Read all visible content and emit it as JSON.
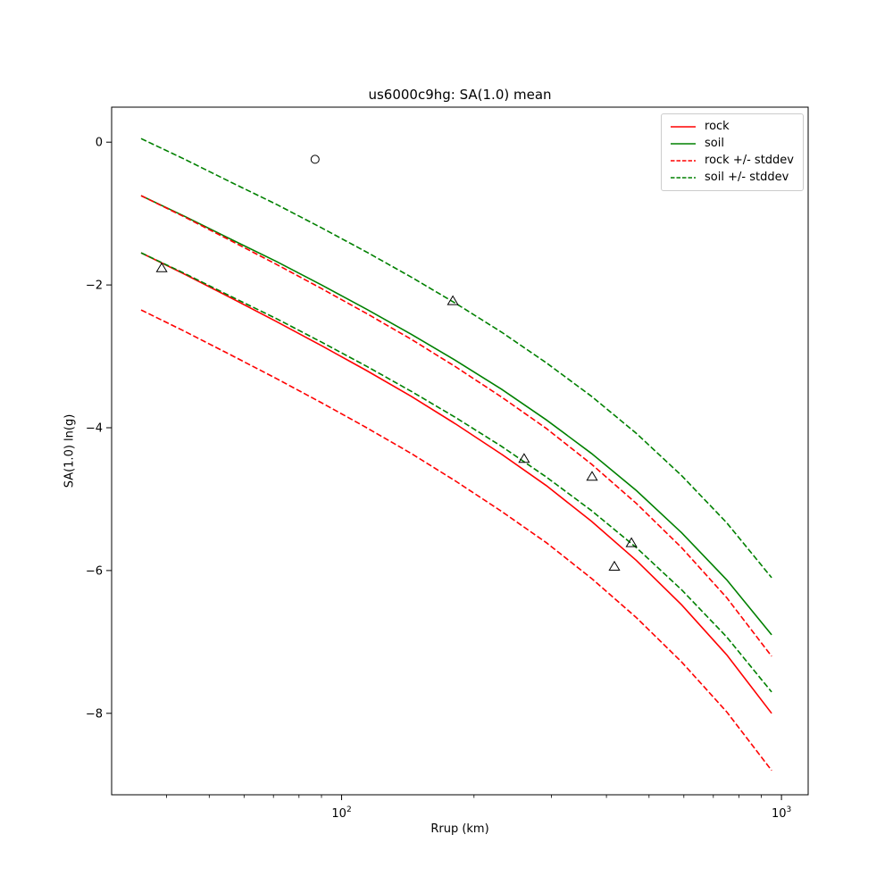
{
  "chart_data": {
    "type": "line",
    "title": "us6000c9hg: SA(1.0) mean",
    "xlabel": "Rrup (km)",
    "ylabel": "SA(1.0) ln(g)",
    "x_scale": "log",
    "y_scale": "linear",
    "xlim": [
      30,
      1150
    ],
    "ylim": [
      -9.14,
      0.49
    ],
    "grid": false,
    "legend_position": "upper right",
    "colors": {
      "rock": "#ff0000",
      "soil": "#008000",
      "markers": "#000000",
      "frame": "#000000"
    },
    "x_major_ticks": [
      {
        "value": 100,
        "base": "10",
        "exponent": "2"
      },
      {
        "value": 1000,
        "base": "10",
        "exponent": "3"
      }
    ],
    "y_ticks": [
      {
        "value": 0,
        "label": "0"
      },
      {
        "value": -2,
        "label": "−2"
      },
      {
        "value": -4,
        "label": "−4"
      },
      {
        "value": -6,
        "label": "−6"
      },
      {
        "value": -8,
        "label": "−8"
      }
    ],
    "x": [
      35,
      44,
      56,
      71,
      90,
      114,
      144,
      182,
      231,
      292,
      370,
      468,
      593,
      751,
      950
    ],
    "series": [
      {
        "name": "rock",
        "color": "#ff0000",
        "linestyle": "solid",
        "values": [
          -1.55,
          -1.85,
          -2.18,
          -2.51,
          -2.85,
          -3.2,
          -3.56,
          -3.95,
          -4.37,
          -4.81,
          -5.31,
          -5.86,
          -6.48,
          -7.18,
          -8.0
        ]
      },
      {
        "name": "soil",
        "color": "#008000",
        "linestyle": "solid",
        "values": [
          -0.75,
          -1.04,
          -1.36,
          -1.67,
          -2.0,
          -2.34,
          -2.69,
          -3.06,
          -3.46,
          -3.89,
          -4.36,
          -4.88,
          -5.47,
          -6.13,
          -6.9
        ]
      },
      {
        "name": "rock +/- stddev",
        "color": "#ff0000",
        "linestyle": "dashed",
        "upper": [
          -0.75,
          -1.05,
          -1.38,
          -1.71,
          -2.05,
          -2.4,
          -2.76,
          -3.15,
          -3.57,
          -4.01,
          -4.51,
          -5.06,
          -5.68,
          -6.38,
          -7.2
        ],
        "lower": [
          -2.35,
          -2.65,
          -2.98,
          -3.31,
          -3.65,
          -4.0,
          -4.36,
          -4.75,
          -5.17,
          -5.61,
          -6.11,
          -6.66,
          -7.28,
          -7.98,
          -8.8
        ]
      },
      {
        "name": "soil +/- stddev",
        "color": "#008000",
        "linestyle": "dashed",
        "upper": [
          0.05,
          -0.24,
          -0.56,
          -0.87,
          -1.2,
          -1.54,
          -1.89,
          -2.26,
          -2.66,
          -3.09,
          -3.56,
          -4.08,
          -4.67,
          -5.33,
          -6.1
        ],
        "lower": [
          -1.55,
          -1.84,
          -2.16,
          -2.47,
          -2.8,
          -3.14,
          -3.49,
          -3.86,
          -4.26,
          -4.69,
          -5.16,
          -5.68,
          -6.27,
          -6.93,
          -7.7
        ]
      }
    ],
    "scatter": [
      {
        "marker": "circle",
        "color": "#000000",
        "points": [
          [
            87,
            -0.24
          ]
        ]
      },
      {
        "marker": "triangle-up",
        "color": "#000000",
        "points": [
          [
            39,
            -1.76
          ],
          [
            179,
            -2.22
          ],
          [
            260,
            -4.43
          ],
          [
            371,
            -4.68
          ],
          [
            456,
            -5.61
          ],
          [
            417,
            -5.94
          ]
        ]
      }
    ]
  }
}
